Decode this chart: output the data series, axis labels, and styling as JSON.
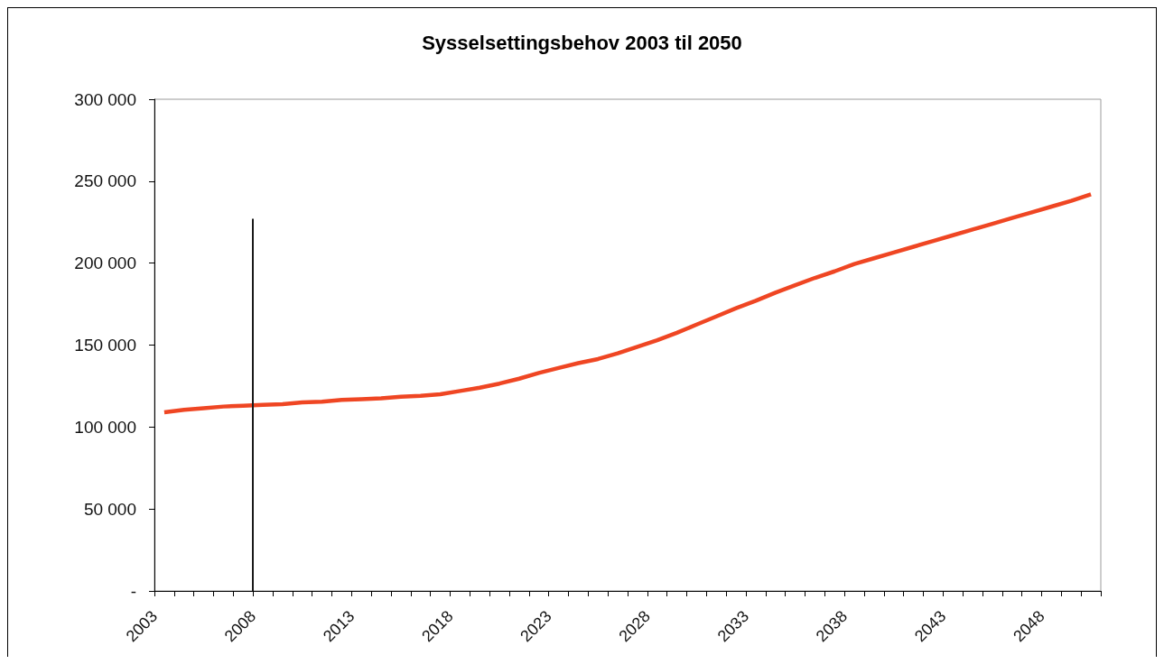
{
  "chart_data": {
    "type": "line",
    "title": "Sysselsettingsbehov 2003 til 2050",
    "x": [
      2003.5,
      2004.5,
      2005.5,
      2006.5,
      2007.5,
      2008.5,
      2009.5,
      2010.5,
      2011.5,
      2012.5,
      2013.5,
      2014.5,
      2015.5,
      2016.5,
      2017.5,
      2018.5,
      2019.5,
      2020.5,
      2021.5,
      2022.5,
      2023.5,
      2024.5,
      2025.5,
      2026.5,
      2027.5,
      2028.5,
      2029.5,
      2030.5,
      2031.5,
      2032.5,
      2033.5,
      2034.5,
      2035.5,
      2036.5,
      2037.5,
      2038.5,
      2039.5,
      2040.5,
      2041.5,
      2042.5,
      2043.5,
      2044.5,
      2045.5,
      2046.5,
      2047.5,
      2048.5,
      2049.5,
      2050.5
    ],
    "series": [
      {
        "color": "#ef4623",
        "values": [
          109000,
          110500,
          111500,
          112500,
          113000,
          113500,
          114000,
          115000,
          115500,
          116500,
          117000,
          117500,
          118500,
          119000,
          120000,
          122000,
          124000,
          126500,
          129500,
          133000,
          136000,
          139000,
          141500,
          145000,
          149000,
          153000,
          157500,
          162500,
          167500,
          172500,
          177000,
          182000,
          186500,
          191000,
          195000,
          199500,
          203000,
          206500,
          210000,
          213500,
          217000,
          220500,
          224000,
          227500,
          231000,
          234500,
          238000,
          242000
        ]
      }
    ],
    "ref_lines": [
      {
        "axis": "x",
        "value": 2008,
        "color": "#1a1a1a"
      }
    ],
    "xlim": [
      2003,
      2051
    ],
    "xticks": [
      2003,
      {
        "value": 2004,
        "label": null
      },
      {
        "value": 2005,
        "label": null
      },
      {
        "value": 2006,
        "label": null
      },
      {
        "value": 2007,
        "label": null
      },
      2008,
      {
        "value": 2009,
        "label": null
      },
      {
        "value": 2010,
        "label": null
      },
      {
        "value": 2011,
        "label": null
      },
      {
        "value": 2012,
        "label": null
      },
      2013,
      {
        "value": 2014,
        "label": null
      },
      {
        "value": 2015,
        "label": null
      },
      {
        "value": 2016,
        "label": null
      },
      {
        "value": 2017,
        "label": null
      },
      2018,
      {
        "value": 2019,
        "label": null
      },
      {
        "value": 2020,
        "label": null
      },
      {
        "value": 2021,
        "label": null
      },
      {
        "value": 2022,
        "label": null
      },
      2023,
      {
        "value": 2024,
        "label": null
      },
      {
        "value": 2025,
        "label": null
      },
      {
        "value": 2026,
        "label": null
      },
      {
        "value": 2027,
        "label": null
      },
      2028,
      {
        "value": 2029,
        "label": null
      },
      {
        "value": 2030,
        "label": null
      },
      {
        "value": 2031,
        "label": null
      },
      {
        "value": 2032,
        "label": null
      },
      2033,
      {
        "value": 2034,
        "label": null
      },
      {
        "value": 2035,
        "label": null
      },
      {
        "value": 2036,
        "label": null
      },
      {
        "value": 2037,
        "label": null
      },
      2038,
      {
        "value": 2039,
        "label": null
      },
      {
        "value": 2040,
        "label": null
      },
      {
        "value": 2041,
        "label": null
      },
      {
        "value": 2042,
        "label": null
      },
      2043,
      {
        "value": 2044,
        "label": null
      },
      {
        "value": 2045,
        "label": null
      },
      {
        "value": 2046,
        "label": null
      },
      {
        "value": 2047,
        "label": null
      },
      2048,
      {
        "value": 2049,
        "label": null
      },
      {
        "value": 2050,
        "label": null
      },
      {
        "value": 2051,
        "label": null
      }
    ],
    "ylim": [
      0,
      300000
    ],
    "yticks": [
      {
        "value": 0,
        "label": "-"
      },
      {
        "value": 50000,
        "label": "50 000"
      },
      {
        "value": 100000,
        "label": "100 000"
      },
      {
        "value": 150000,
        "label": "150 000"
      },
      {
        "value": 200000,
        "label": "200 000"
      },
      {
        "value": 250000,
        "label": "250 000"
      },
      {
        "value": 300000,
        "label": "300 000"
      }
    ],
    "marker": "none"
  }
}
